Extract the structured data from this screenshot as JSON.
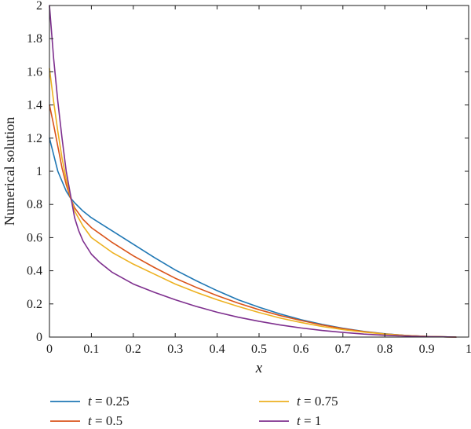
{
  "chart_data": {
    "type": "line",
    "title": "",
    "xlabel": "x",
    "ylabel": "Numerical solution",
    "xlim": [
      0,
      1
    ],
    "ylim": [
      0,
      2
    ],
    "xticks": [
      "0",
      "0.1",
      "0.2",
      "0.3",
      "0.4",
      "0.5",
      "0.6",
      "0.7",
      "0.8",
      "0.9",
      "1"
    ],
    "yticks": [
      "0",
      "0.2",
      "0.4",
      "0.6",
      "0.8",
      "1",
      "1.2",
      "1.4",
      "1.6",
      "1.8",
      "2"
    ],
    "grid": false,
    "legend_position": "bottom",
    "series": [
      {
        "name": "t = 0.25",
        "var": "t",
        "value": "0.25",
        "color": "#1f77b4",
        "x": [
          0,
          0.02,
          0.04,
          0.05,
          0.06,
          0.08,
          0.1,
          0.15,
          0.2,
          0.25,
          0.3,
          0.35,
          0.4,
          0.45,
          0.5,
          0.55,
          0.6,
          0.65,
          0.7,
          0.75,
          0.8,
          0.85,
          0.9,
          0.95,
          0.97
        ],
        "y": [
          1.2,
          1.0,
          0.88,
          0.84,
          0.81,
          0.76,
          0.72,
          0.64,
          0.56,
          0.48,
          0.405,
          0.34,
          0.28,
          0.225,
          0.18,
          0.14,
          0.105,
          0.077,
          0.053,
          0.034,
          0.02,
          0.01,
          0.004,
          0.001,
          0
        ]
      },
      {
        "name": "t = 0.5",
        "var": "t",
        "value": "0.5",
        "color": "#d95319",
        "x": [
          0,
          0.01,
          0.02,
          0.03,
          0.04,
          0.05,
          0.06,
          0.08,
          0.1,
          0.15,
          0.2,
          0.25,
          0.3,
          0.35,
          0.4,
          0.45,
          0.5,
          0.55,
          0.6,
          0.65,
          0.7,
          0.75,
          0.8,
          0.85,
          0.9,
          0.95,
          0.97
        ],
        "y": [
          1.4,
          1.28,
          1.15,
          1.02,
          0.92,
          0.84,
          0.78,
          0.71,
          0.66,
          0.57,
          0.49,
          0.42,
          0.355,
          0.3,
          0.25,
          0.205,
          0.165,
          0.13,
          0.1,
          0.073,
          0.051,
          0.033,
          0.019,
          0.01,
          0.004,
          0.001,
          0
        ]
      },
      {
        "name": "t = 0.75",
        "var": "t",
        "value": "0.75",
        "color": "#edb120",
        "x": [
          0,
          0.01,
          0.02,
          0.03,
          0.04,
          0.05,
          0.06,
          0.08,
          0.1,
          0.15,
          0.2,
          0.25,
          0.3,
          0.35,
          0.4,
          0.45,
          0.5,
          0.55,
          0.6,
          0.65,
          0.7,
          0.75,
          0.8,
          0.85,
          0.9,
          0.95,
          0.97
        ],
        "y": [
          1.62,
          1.42,
          1.24,
          1.08,
          0.95,
          0.85,
          0.76,
          0.67,
          0.6,
          0.51,
          0.44,
          0.38,
          0.32,
          0.27,
          0.225,
          0.185,
          0.148,
          0.115,
          0.088,
          0.064,
          0.045,
          0.03,
          0.018,
          0.009,
          0.004,
          0.001,
          0
        ]
      },
      {
        "name": "t = 1",
        "var": "t",
        "value": "1",
        "color": "#7e2f8e",
        "x": [
          0,
          0.01,
          0.02,
          0.03,
          0.04,
          0.05,
          0.06,
          0.07,
          0.08,
          0.1,
          0.12,
          0.15,
          0.2,
          0.25,
          0.3,
          0.35,
          0.4,
          0.45,
          0.5,
          0.55,
          0.6,
          0.65,
          0.7,
          0.75,
          0.8,
          0.85,
          0.9,
          0.95,
          0.97
        ],
        "y": [
          2.0,
          1.68,
          1.42,
          1.2,
          1.0,
          0.86,
          0.72,
          0.64,
          0.58,
          0.5,
          0.45,
          0.39,
          0.32,
          0.27,
          0.225,
          0.185,
          0.15,
          0.12,
          0.095,
          0.073,
          0.055,
          0.04,
          0.028,
          0.018,
          0.011,
          0.006,
          0.003,
          0.001,
          0
        ]
      }
    ]
  }
}
